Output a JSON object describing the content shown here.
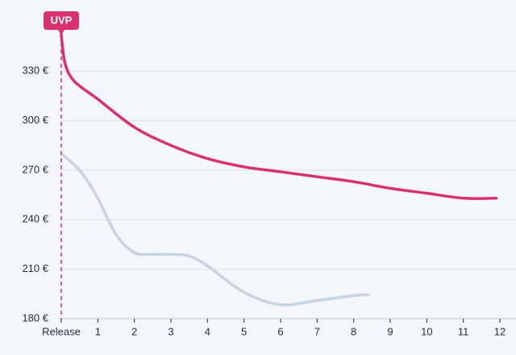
{
  "chart_data": {
    "type": "line",
    "xlim": [
      0,
      12
    ],
    "xticks": [
      {
        "value": 0,
        "label": "Release"
      },
      1,
      2,
      3,
      4,
      5,
      6,
      7,
      8,
      9,
      10,
      11,
      12
    ],
    "ylim": [
      180,
      355
    ],
    "yticks": [
      {
        "value": 180,
        "label": "180 €"
      },
      {
        "value": 210,
        "label": "210 €"
      },
      {
        "value": 240,
        "label": "240 €"
      },
      {
        "value": 270,
        "label": "270 €"
      },
      {
        "value": 300,
        "label": "300 €"
      },
      {
        "value": 330,
        "label": "330 €"
      }
    ],
    "grid": true,
    "annotation": {
      "text": "UVP",
      "x": 0,
      "color": "#d7316e"
    },
    "series": [
      {
        "color": "#d7316e",
        "x": [
          0,
          0.1,
          0.35,
          1,
          2,
          3,
          4,
          5,
          6,
          7,
          8,
          9,
          10,
          11,
          11.9
        ],
        "values": [
          352,
          335,
          324,
          313,
          296,
          285,
          277,
          272,
          269,
          266,
          263,
          259,
          256,
          253,
          253
        ]
      },
      {
        "color": "#c5d3e3",
        "x": [
          0,
          0.5,
          1,
          1.5,
          2,
          2.5,
          3,
          3.5,
          4,
          5,
          6,
          7,
          8,
          8.4
        ],
        "values": [
          280,
          270,
          253,
          231,
          220,
          219,
          219,
          218,
          212,
          196,
          188.5,
          191,
          194,
          194.5
        ]
      }
    ]
  }
}
